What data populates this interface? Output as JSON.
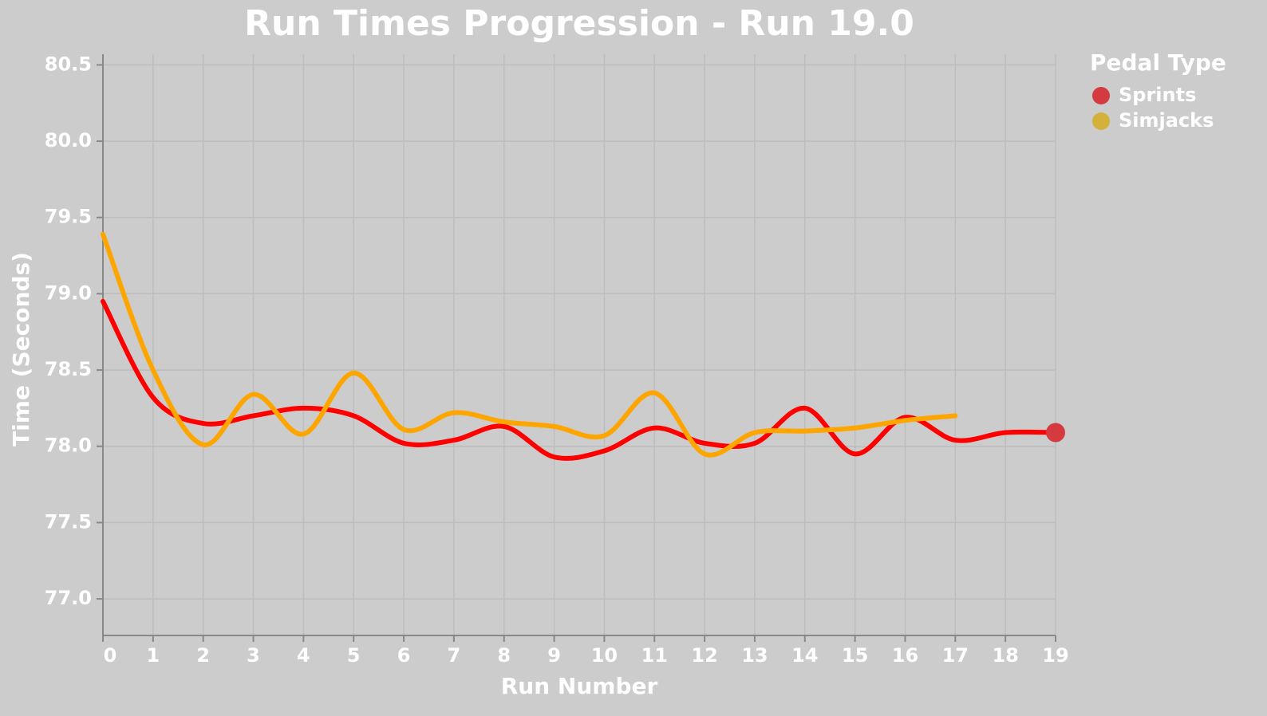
{
  "chart_data": {
    "type": "line",
    "title": "Run Times Progression - Run 19.0",
    "x_label": "Run Number",
    "y_label": "Time (Seconds)",
    "legend_title": "Pedal Type",
    "legend_position": "right",
    "grid": true,
    "x": [
      0,
      1,
      2,
      3,
      4,
      5,
      6,
      7,
      8,
      9,
      10,
      11,
      12,
      13,
      14,
      15,
      16,
      17,
      18,
      19
    ],
    "series": [
      {
        "name": "Sprints",
        "color": "#ff0000",
        "marker_color": "#d43a3f",
        "values": [
          78.95,
          78.32,
          78.15,
          78.2,
          78.25,
          78.2,
          78.02,
          78.04,
          78.13,
          77.93,
          77.97,
          78.12,
          78.02,
          78.02,
          78.25,
          77.95,
          78.19,
          78.04,
          78.09,
          78.09
        ]
      },
      {
        "name": "Simjacks",
        "color": "#ffa500",
        "marker_color": "#d4b13a",
        "values": [
          79.39,
          78.5,
          78.01,
          78.34,
          78.08,
          78.48,
          78.11,
          78.22,
          78.16,
          78.13,
          78.07,
          78.35,
          77.95,
          78.09,
          78.1,
          78.12,
          78.17,
          78.2,
          null,
          null
        ]
      }
    ],
    "xlim": [
      0,
      19
    ],
    "xticks": [
      0,
      1,
      2,
      3,
      4,
      5,
      6,
      7,
      8,
      9,
      10,
      11,
      12,
      13,
      14,
      15,
      16,
      17,
      18,
      19
    ],
    "ylim": [
      76.76,
      80.57
    ],
    "yticks": [
      {
        "value": 77,
        "label": "77.0"
      },
      77.5,
      {
        "value": 78,
        "label": "78.0"
      },
      78.5,
      {
        "value": 79,
        "label": "79.0"
      },
      79.5,
      {
        "value": 80,
        "label": "80.0"
      },
      80.5
    ]
  }
}
